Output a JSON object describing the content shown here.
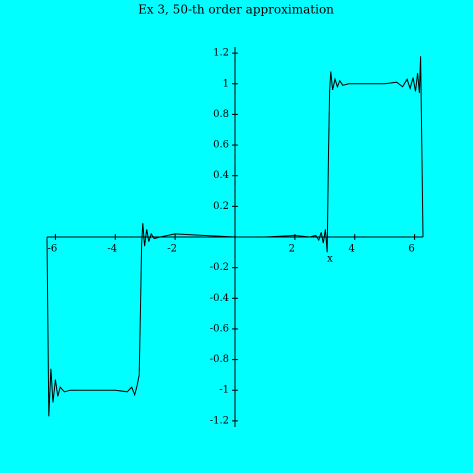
{
  "chart_data": {
    "type": "line",
    "title": "Ex 3, 50-th order approximation",
    "x_label": "x",
    "xlim": [
      -6.28,
      6.28
    ],
    "ylim": [
      -1.24,
      1.24
    ],
    "xticks": [
      -6,
      -4,
      -2,
      2,
      4,
      6
    ],
    "yticks": [
      -1.2,
      -1,
      -0.8,
      -0.6,
      -0.4,
      -0.2,
      0.2,
      0.4,
      0.6,
      0.8,
      1,
      1.2
    ],
    "series": [
      {
        "color": "#000000",
        "x": [
          -6.28,
          -6.22,
          -6.15,
          -6.08,
          -6.0,
          -5.92,
          -5.84,
          -5.7,
          -5.5,
          -5,
          -4.5,
          -4,
          -3.6,
          -3.45,
          -3.35,
          -3.27,
          -3.2,
          -3.16,
          -3.12,
          -3.08,
          -3.02,
          -2.95,
          -2.88,
          -2.8,
          -2.7,
          -2.5,
          -2,
          -1,
          0,
          1,
          2,
          2.5,
          2.7,
          2.8,
          2.88,
          2.95,
          3.02,
          3.08,
          3.12,
          3.16,
          3.2,
          3.26,
          3.34,
          3.42,
          3.5,
          3.6,
          3.8,
          4.5,
          5,
          5.4,
          5.6,
          5.75,
          5.85,
          5.95,
          6.03,
          6.1,
          6.16,
          6.2,
          6.24,
          6.28
        ],
        "values": [
          0,
          -1.17,
          -0.86,
          -1.08,
          -0.93,
          -1.04,
          -0.98,
          -1.01,
          -1,
          -1,
          -1,
          -1,
          -1.01,
          -0.98,
          -1.03,
          -0.97,
          -0.9,
          -0.5,
          -0.05,
          0.09,
          -0.06,
          0.05,
          -0.03,
          0.02,
          -0.01,
          0,
          0.02,
          0.01,
          0,
          0,
          0.01,
          0,
          0.01,
          -0.02,
          0.03,
          -0.04,
          0.05,
          -0.1,
          0.5,
          0.95,
          1.08,
          0.96,
          1.03,
          0.98,
          1.02,
          0.99,
          1,
          1,
          1,
          1.01,
          0.98,
          1.03,
          0.97,
          1.04,
          0.95,
          1.07,
          0.94,
          1.18,
          0.6,
          0
        ]
      }
    ]
  }
}
